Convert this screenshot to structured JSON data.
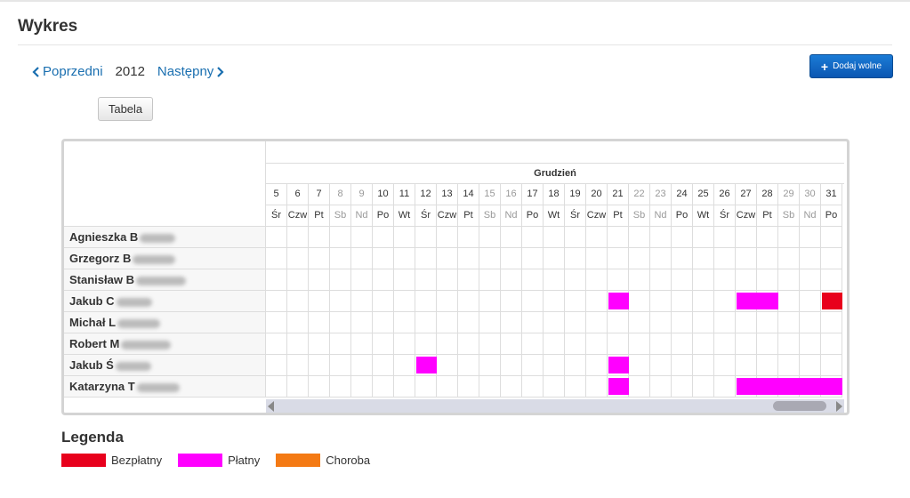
{
  "page": {
    "title": "Wykres"
  },
  "nav": {
    "prev_label": "Poprzedni",
    "year": "2012",
    "next_label": "Następny"
  },
  "buttons": {
    "tabela": "Tabela",
    "add_free": "Dodaj wolne"
  },
  "calendar": {
    "month": "Grudzień",
    "days": [
      {
        "d": "5",
        "w": "Śr",
        "we": false
      },
      {
        "d": "6",
        "w": "Czw",
        "we": false
      },
      {
        "d": "7",
        "w": "Pt",
        "we": false
      },
      {
        "d": "8",
        "w": "Sb",
        "we": true
      },
      {
        "d": "9",
        "w": "Nd",
        "we": true
      },
      {
        "d": "10",
        "w": "Po",
        "we": false
      },
      {
        "d": "11",
        "w": "Wt",
        "we": false
      },
      {
        "d": "12",
        "w": "Śr",
        "we": false
      },
      {
        "d": "13",
        "w": "Czw",
        "we": false
      },
      {
        "d": "14",
        "w": "Pt",
        "we": false
      },
      {
        "d": "15",
        "w": "Sb",
        "we": true
      },
      {
        "d": "16",
        "w": "Nd",
        "we": true
      },
      {
        "d": "17",
        "w": "Po",
        "we": false
      },
      {
        "d": "18",
        "w": "Wt",
        "we": false
      },
      {
        "d": "19",
        "w": "Śr",
        "we": false
      },
      {
        "d": "20",
        "w": "Czw",
        "we": false
      },
      {
        "d": "21",
        "w": "Pt",
        "we": false
      },
      {
        "d": "22",
        "w": "Sb",
        "we": true
      },
      {
        "d": "23",
        "w": "Nd",
        "we": true
      },
      {
        "d": "24",
        "w": "Po",
        "we": false
      },
      {
        "d": "25",
        "w": "Wt",
        "we": false
      },
      {
        "d": "26",
        "w": "Śr",
        "we": false
      },
      {
        "d": "27",
        "w": "Czw",
        "we": false
      },
      {
        "d": "28",
        "w": "Pt",
        "we": false
      },
      {
        "d": "29",
        "w": "Sb",
        "we": true
      },
      {
        "d": "30",
        "w": "Nd",
        "we": true
      },
      {
        "d": "31",
        "w": "Po",
        "we": false
      }
    ],
    "employees": [
      {
        "name": "Agnieszka B",
        "absences": []
      },
      {
        "name": "Grzegorz B",
        "absences": []
      },
      {
        "name": "Stanisław B",
        "absences": []
      },
      {
        "name": "Jakub C",
        "absences": [
          {
            "from": "21",
            "to": "21",
            "type": "paid"
          },
          {
            "from": "27",
            "to": "28",
            "type": "paid"
          },
          {
            "from": "31",
            "to": "31",
            "type": "unpaid"
          }
        ]
      },
      {
        "name": "Michał L",
        "absences": []
      },
      {
        "name": "Robert M",
        "absences": []
      },
      {
        "name": "Jakub Ś",
        "absences": [
          {
            "from": "12",
            "to": "12",
            "type": "paid"
          },
          {
            "from": "21",
            "to": "21",
            "type": "paid"
          }
        ]
      },
      {
        "name": "Katarzyna T",
        "absences": [
          {
            "from": "21",
            "to": "21",
            "type": "paid"
          },
          {
            "from": "27",
            "to": "31",
            "type": "paid"
          }
        ]
      }
    ]
  },
  "legend": {
    "title": "Legenda",
    "items": [
      {
        "label": "Bezpłatny",
        "key": "unpaid",
        "color": "#e8001c"
      },
      {
        "label": "Płatny",
        "key": "paid",
        "color": "#ff00ff"
      },
      {
        "label": "Choroba",
        "key": "sick",
        "color": "#f47a14"
      }
    ]
  }
}
